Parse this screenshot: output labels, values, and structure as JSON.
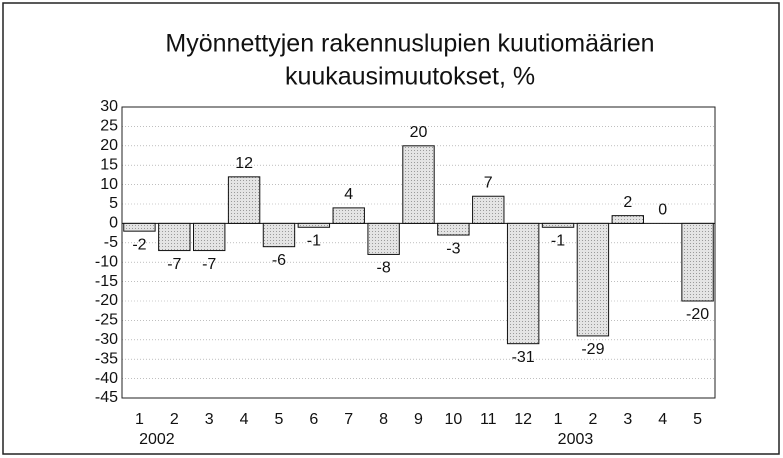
{
  "chart_data": {
    "type": "bar",
    "title": [
      "Myönnettyjen rakennuslupien kuutiomäärien",
      "kuukausimuutokset, %"
    ],
    "categories": [
      "1",
      "2",
      "3",
      "4",
      "5",
      "6",
      "7",
      "8",
      "9",
      "10",
      "11",
      "12",
      "1",
      "2",
      "3",
      "4",
      "5"
    ],
    "year_labels": [
      "2002",
      null,
      null,
      null,
      null,
      null,
      null,
      null,
      null,
      null,
      null,
      null,
      "2003",
      null,
      null,
      null,
      null
    ],
    "values": [
      -2,
      -7,
      -7,
      12,
      -6,
      -1,
      4,
      -8,
      20,
      -3,
      7,
      -31,
      -1,
      -29,
      2,
      0,
      -20
    ],
    "color": "#d9d9d9",
    "ylim": [
      -45,
      30
    ],
    "yticks": [
      -45,
      -40,
      -35,
      -30,
      -25,
      -20,
      -15,
      -10,
      -5,
      0,
      5,
      10,
      15,
      20,
      25,
      30
    ],
    "grid": true
  }
}
